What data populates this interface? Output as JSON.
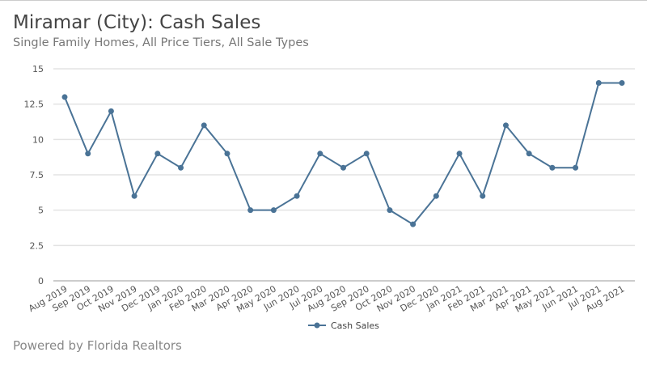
{
  "header": {
    "title": "Miramar (City): Cash Sales",
    "subtitle": "Single Family Homes, All Price Tiers, All Sale Types"
  },
  "footer": {
    "text": "Powered by Florida Realtors"
  },
  "chart_data": {
    "type": "line",
    "title": "Miramar (City): Cash Sales",
    "subtitle": "Single Family Homes, All Price Tiers, All Sale Types",
    "categories": [
      "Aug 2019",
      "Sep 2019",
      "Oct 2019",
      "Nov 2019",
      "Dec 2019",
      "Jan 2020",
      "Feb 2020",
      "Mar 2020",
      "Apr 2020",
      "May 2020",
      "Jun 2020",
      "Jul 2020",
      "Aug 2020",
      "Sep 2020",
      "Oct 2020",
      "Nov 2020",
      "Dec 2020",
      "Jan 2021",
      "Feb 2021",
      "Mar 2021",
      "Apr 2021",
      "May 2021",
      "Jun 2021",
      "Jul 2021",
      "Aug 2021"
    ],
    "series": [
      {
        "name": "Cash Sales",
        "color": "#4a7396",
        "values": [
          13,
          9,
          12,
          6,
          9,
          8,
          11,
          9,
          5,
          5,
          6,
          9,
          8,
          9,
          5,
          4,
          6,
          9,
          6,
          11,
          9,
          8,
          8,
          14,
          14
        ]
      }
    ],
    "ylim": [
      0,
      15
    ],
    "yticks": [
      0,
      2.5,
      5,
      7.5,
      10,
      12.5,
      15
    ],
    "ytick_labels": [
      "0",
      "2.5",
      "5",
      "7.5",
      "10",
      "12.5",
      "15"
    ],
    "grid": true,
    "legend": "bottom-center"
  }
}
